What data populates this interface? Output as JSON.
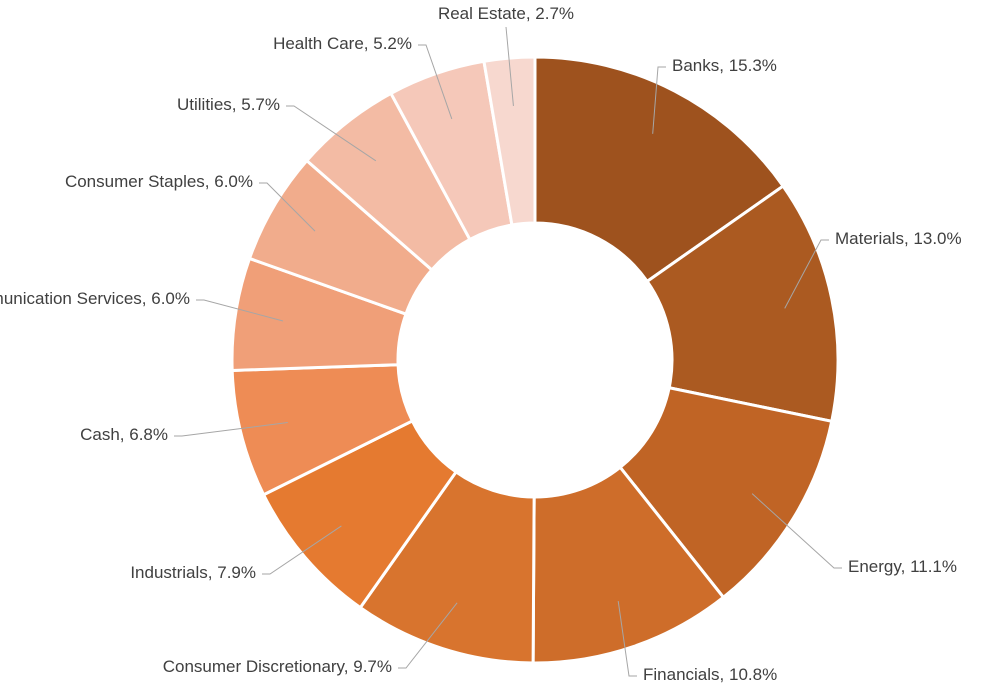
{
  "chart_data": {
    "type": "donut",
    "categories": [
      "Banks",
      "Materials",
      "Energy",
      "Financials",
      "Consumer Discretionary",
      "Industrials",
      "Cash",
      "Communication Services",
      "Consumer Staples",
      "Utilities",
      "Health Care",
      "Real Estate"
    ],
    "values": [
      15.3,
      13.0,
      11.1,
      10.8,
      9.7,
      7.9,
      6.8,
      6.0,
      6.0,
      5.7,
      5.2,
      2.7
    ],
    "value_labels": [
      "15.3%",
      "13.0%",
      "11.1%",
      "10.8%",
      "9.7%",
      "7.9%",
      "6.8%",
      "6.0%",
      "6.0%",
      "5.7%",
      "5.2%",
      "2.7%"
    ],
    "label_separator": ", ",
    "colors": [
      "#9e521e",
      "#ab5a21",
      "#c06425",
      "#ce6d2a",
      "#d8742e",
      "#e57a30",
      "#ee8c55",
      "#f09f78",
      "#f1ac8c",
      "#f3bba4",
      "#f5c8b9",
      "#f7d8cf"
    ]
  }
}
